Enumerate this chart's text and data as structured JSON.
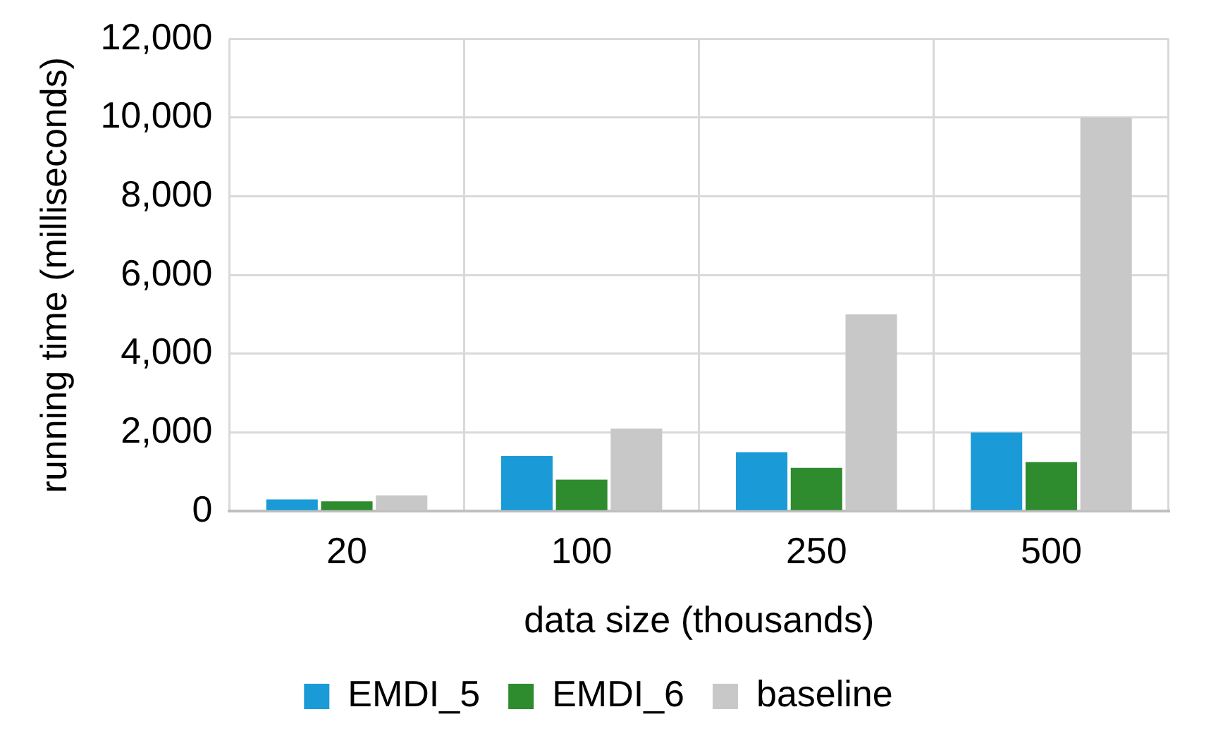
{
  "chart_data": {
    "type": "bar",
    "xlabel": "data size (thousands)",
    "ylabel": "running time (milliseconds)",
    "categories": [
      "20",
      "100",
      "250",
      "500"
    ],
    "series": [
      {
        "name": "EMDI_5",
        "color": "#1a9bd7",
        "values": [
          300,
          1400,
          1500,
          2000
        ]
      },
      {
        "name": "EMDI_6",
        "color": "#2e8b2e",
        "values": [
          250,
          800,
          1100,
          1250
        ]
      },
      {
        "name": "baseline",
        "color": "#c8c8c8",
        "values": [
          400,
          2100,
          5000,
          10000
        ]
      }
    ],
    "ylim": [
      0,
      12000
    ],
    "yticks": [
      0,
      {
        "value": 2000,
        "label": "2,000"
      },
      {
        "value": 4000,
        "label": "4,000"
      },
      {
        "value": 6000,
        "label": "6,000"
      },
      {
        "value": 8000,
        "label": "8,000"
      },
      {
        "value": 10000,
        "label": "10,000"
      },
      {
        "value": 12000,
        "label": "12,000"
      }
    ],
    "grid": true,
    "legend": "bottom"
  }
}
